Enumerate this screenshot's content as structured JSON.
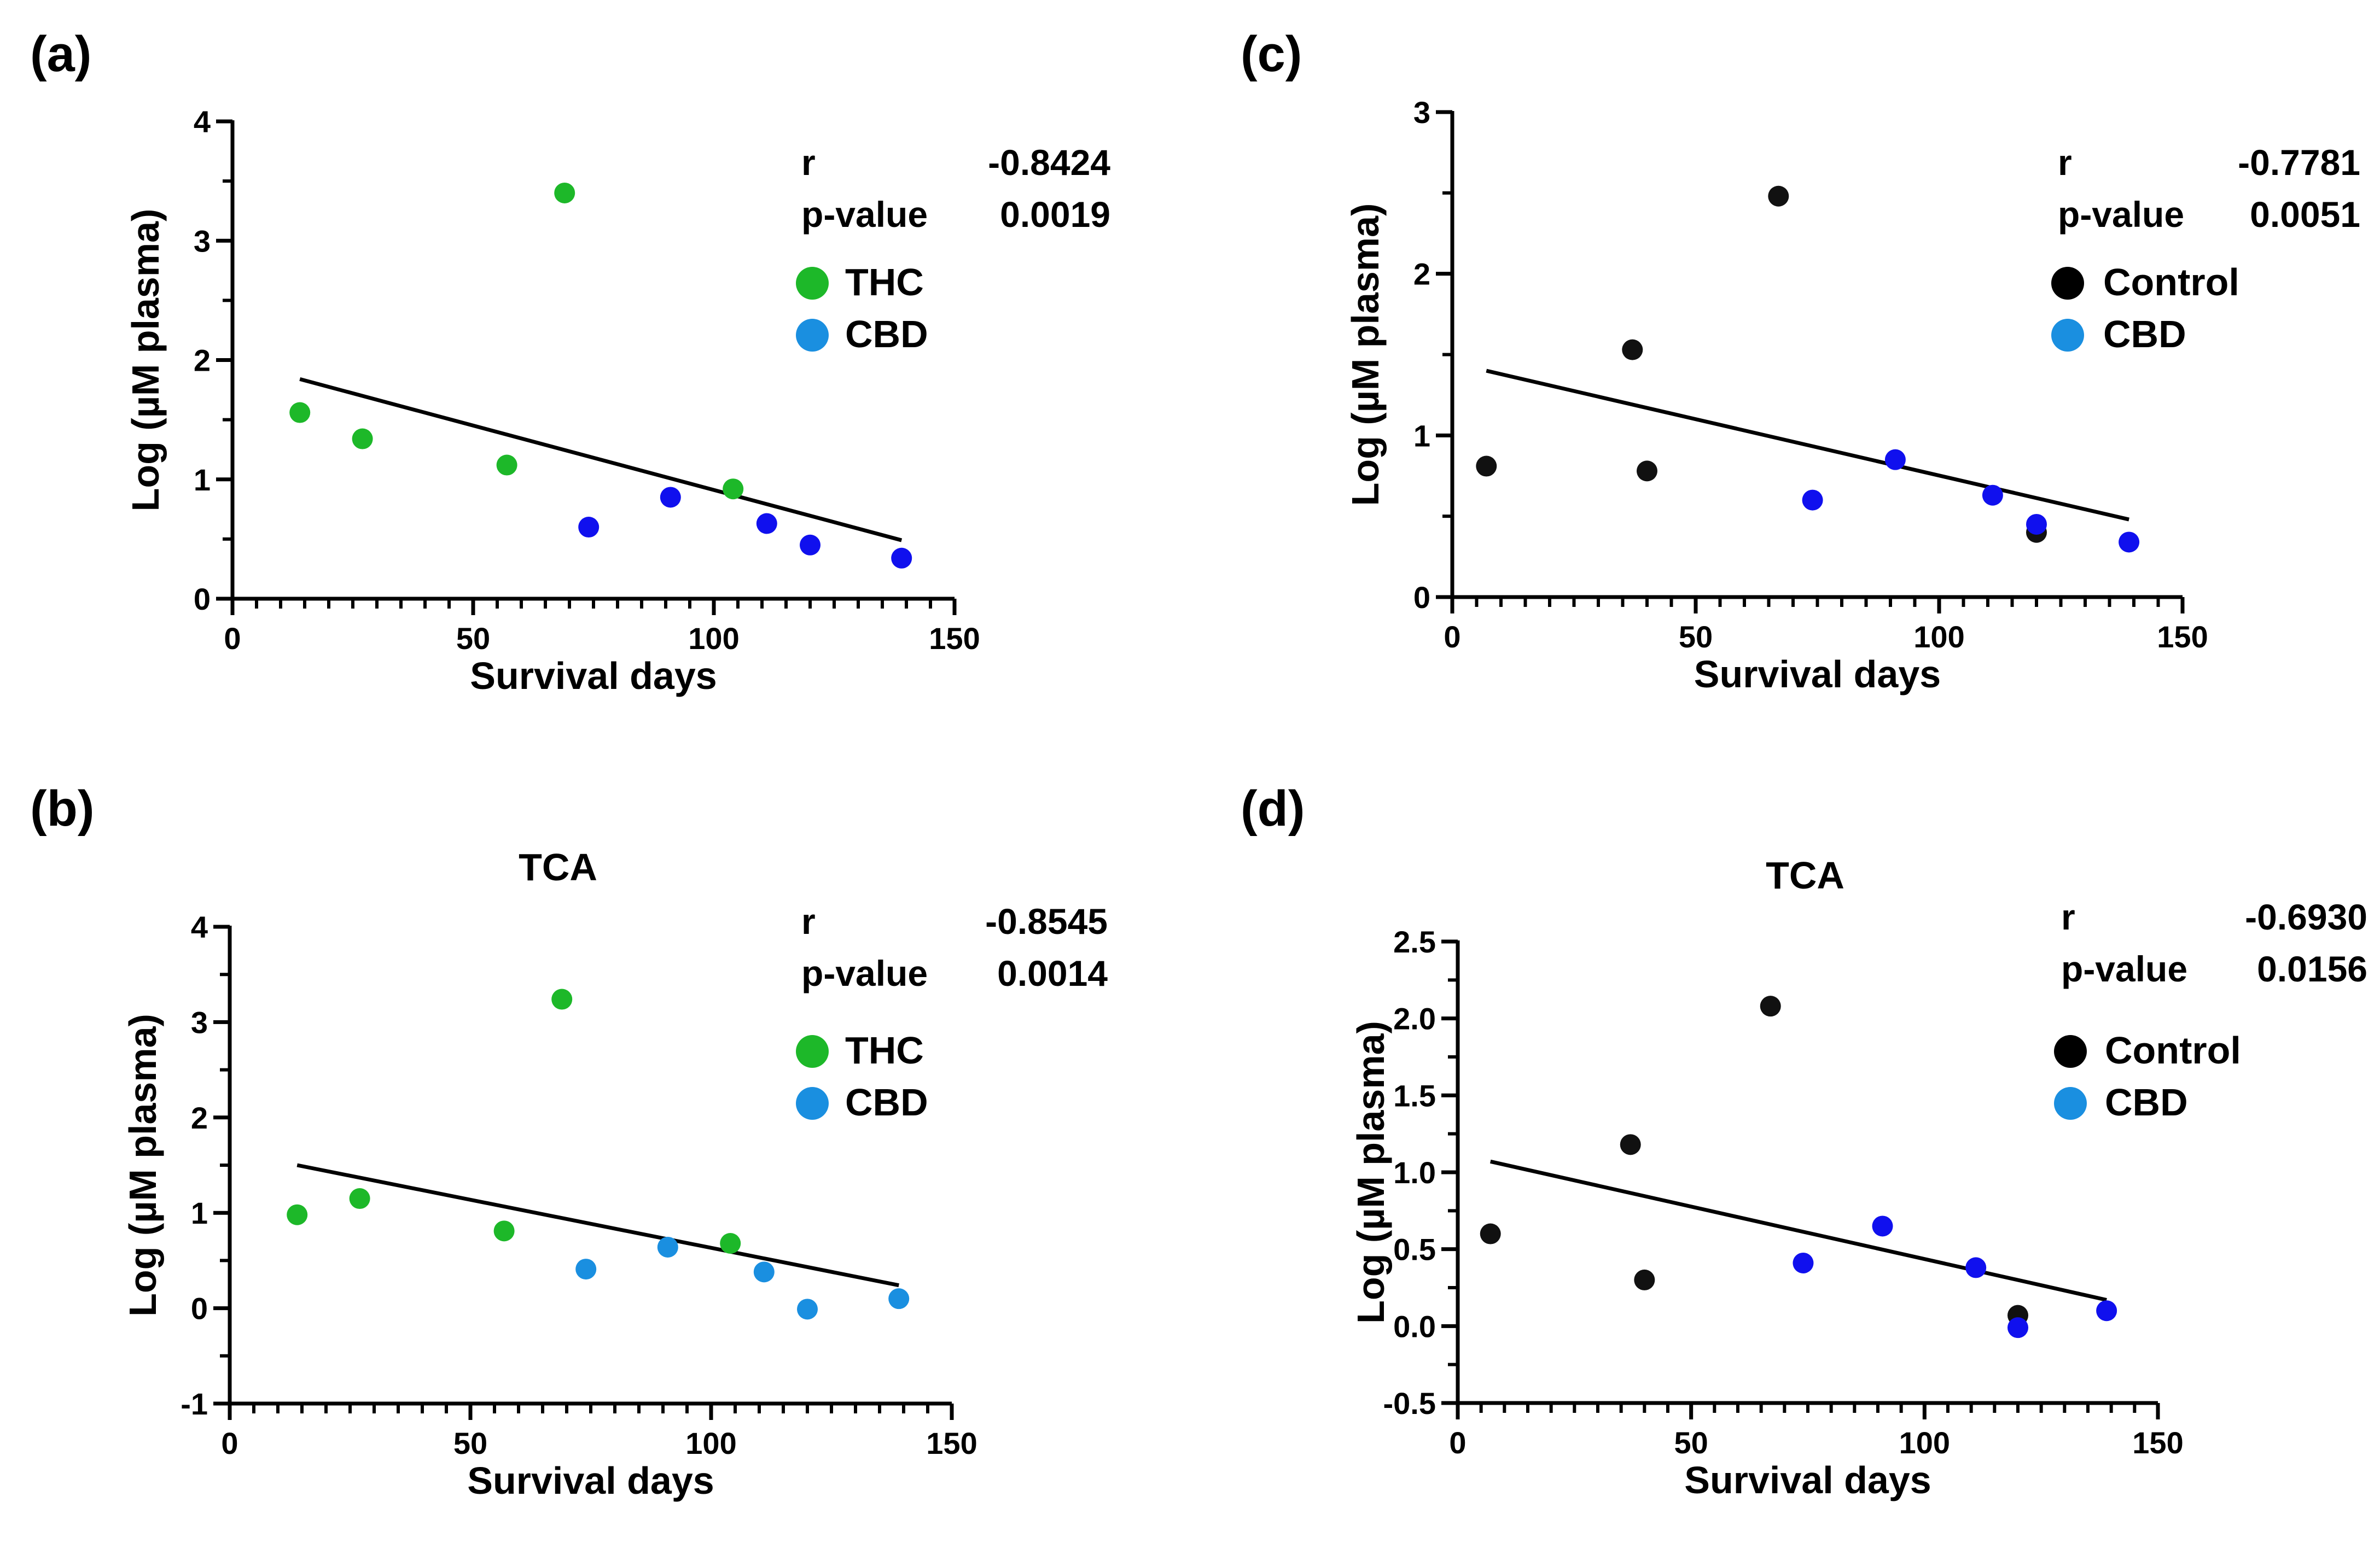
{
  "figure": {
    "panels": [
      "a",
      "b",
      "c",
      "d"
    ]
  },
  "chart_data": [
    {
      "id": "a",
      "type": "scatter",
      "panel_label": "(a)",
      "title": "",
      "xlabel": "Survival days",
      "ylabel": "Log (µM plasma)",
      "xlim": [
        0,
        150
      ],
      "ylim": [
        0,
        4
      ],
      "xticks": [
        0,
        50,
        100,
        150
      ],
      "yticks": [
        0,
        1,
        2,
        3,
        4
      ],
      "xtick_labels": [
        "0",
        "50",
        "100",
        "150"
      ],
      "ytick_labels": [
        "0",
        "1",
        "2",
        "3",
        "4"
      ],
      "stats": {
        "r_label": "r",
        "r_value": "-0.8424",
        "p_label": "p-value",
        "p_value": "0.0019"
      },
      "legend": [
        {
          "name": "THC",
          "color": "#1db829"
        },
        {
          "name": "CBD",
          "color": "#1a8fe0"
        }
      ],
      "series": [
        {
          "name": "THC",
          "color": "#1db829",
          "x": [
            14,
            27,
            57,
            69,
            104
          ],
          "y": [
            1.56,
            1.34,
            1.12,
            3.4,
            0.92
          ]
        },
        {
          "name": "CBD",
          "color": "#1010ee",
          "x": [
            74,
            91,
            111,
            120,
            139
          ],
          "y": [
            0.6,
            0.85,
            0.63,
            0.45,
            0.34
          ]
        }
      ],
      "trend": {
        "x": [
          14,
          139
        ],
        "y": [
          1.84,
          0.49
        ]
      }
    },
    {
      "id": "b",
      "type": "scatter",
      "panel_label": "(b)",
      "title": "TCA",
      "xlabel": "Survival days",
      "ylabel": "Log (µM plasma)",
      "xlim": [
        0,
        150
      ],
      "ylim": [
        -1,
        4
      ],
      "xticks": [
        0,
        50,
        100,
        150
      ],
      "yticks": [
        -1,
        0,
        1,
        2,
        3,
        4
      ],
      "xtick_labels": [
        "0",
        "50",
        "100",
        "150"
      ],
      "ytick_labels": [
        "-1",
        "0",
        "1",
        "2",
        "3",
        "4"
      ],
      "stats": {
        "r_label": "r",
        "r_value": "-0.8545",
        "p_label": "p-value",
        "p_value": "0.0014"
      },
      "legend": [
        {
          "name": "THC",
          "color": "#1db829"
        },
        {
          "name": "CBD",
          "color": "#1a8fe0"
        }
      ],
      "series": [
        {
          "name": "THC",
          "color": "#1db829",
          "x": [
            14,
            27,
            57,
            69,
            104
          ],
          "y": [
            0.98,
            1.15,
            0.81,
            3.24,
            0.68
          ]
        },
        {
          "name": "CBD",
          "color": "#1a8fe0",
          "x": [
            74,
            91,
            111,
            120,
            139
          ],
          "y": [
            0.41,
            0.64,
            0.38,
            -0.01,
            0.1
          ]
        }
      ],
      "trend": {
        "x": [
          14,
          139
        ],
        "y": [
          1.5,
          0.24
        ]
      }
    },
    {
      "id": "c",
      "type": "scatter",
      "panel_label": "(c)",
      "title": "",
      "xlabel": "Survival days",
      "ylabel": "Log (µM plasma)",
      "xlim": [
        0,
        150
      ],
      "ylim": [
        0,
        3
      ],
      "xticks": [
        0,
        50,
        100,
        150
      ],
      "yticks": [
        0,
        1,
        2,
        3
      ],
      "xtick_labels": [
        "0",
        "50",
        "100",
        "150"
      ],
      "ytick_labels": [
        "0",
        "1",
        "2",
        "3"
      ],
      "stats": {
        "r_label": "r",
        "r_value": "-0.7781",
        "p_label": "p-value",
        "p_value": "0.0051"
      },
      "legend": [
        {
          "name": "Control",
          "color": "#000000"
        },
        {
          "name": "CBD",
          "color": "#1a8fe0"
        }
      ],
      "series": [
        {
          "name": "Control",
          "color": "#111111",
          "x": [
            7,
            37,
            40,
            67,
            120
          ],
          "y": [
            0.81,
            1.53,
            0.78,
            2.48,
            0.4
          ]
        },
        {
          "name": "CBD",
          "color": "#1010ee",
          "x": [
            74,
            91,
            111,
            120,
            139
          ],
          "y": [
            0.6,
            0.85,
            0.63,
            0.45,
            0.34
          ]
        }
      ],
      "trend": {
        "x": [
          7,
          139
        ],
        "y": [
          1.4,
          0.48
        ]
      }
    },
    {
      "id": "d",
      "type": "scatter",
      "panel_label": "(d)",
      "title": "TCA",
      "xlabel": "Survival days",
      "ylabel": "Log (µM plasma)",
      "xlim": [
        0,
        150
      ],
      "ylim": [
        -0.5,
        2.5
      ],
      "xticks": [
        0,
        50,
        100,
        150
      ],
      "yticks": [
        -0.5,
        0.0,
        0.5,
        1.0,
        1.5,
        2.0,
        2.5
      ],
      "xtick_labels": [
        "0",
        "50",
        "100",
        "150"
      ],
      "ytick_labels": [
        "-0.5",
        "0.0",
        "0.5",
        "1.0",
        "1.5",
        "2.0",
        "2.5"
      ],
      "stats": {
        "r_label": "r",
        "r_value": "-0.6930",
        "p_label": "p-value",
        "p_value": "0.0156"
      },
      "legend": [
        {
          "name": "Control",
          "color": "#000000"
        },
        {
          "name": "CBD",
          "color": "#1a8fe0"
        }
      ],
      "series": [
        {
          "name": "Control",
          "color": "#111111",
          "x": [
            7,
            37,
            40,
            67,
            120
          ],
          "y": [
            0.6,
            1.18,
            0.3,
            2.08,
            0.07
          ]
        },
        {
          "name": "CBD",
          "color": "#1010ee",
          "x": [
            74,
            91,
            111,
            120,
            139
          ],
          "y": [
            0.41,
            0.65,
            0.38,
            -0.01,
            0.1
          ]
        }
      ],
      "trend": {
        "x": [
          7,
          139
        ],
        "y": [
          1.07,
          0.17
        ]
      }
    }
  ]
}
